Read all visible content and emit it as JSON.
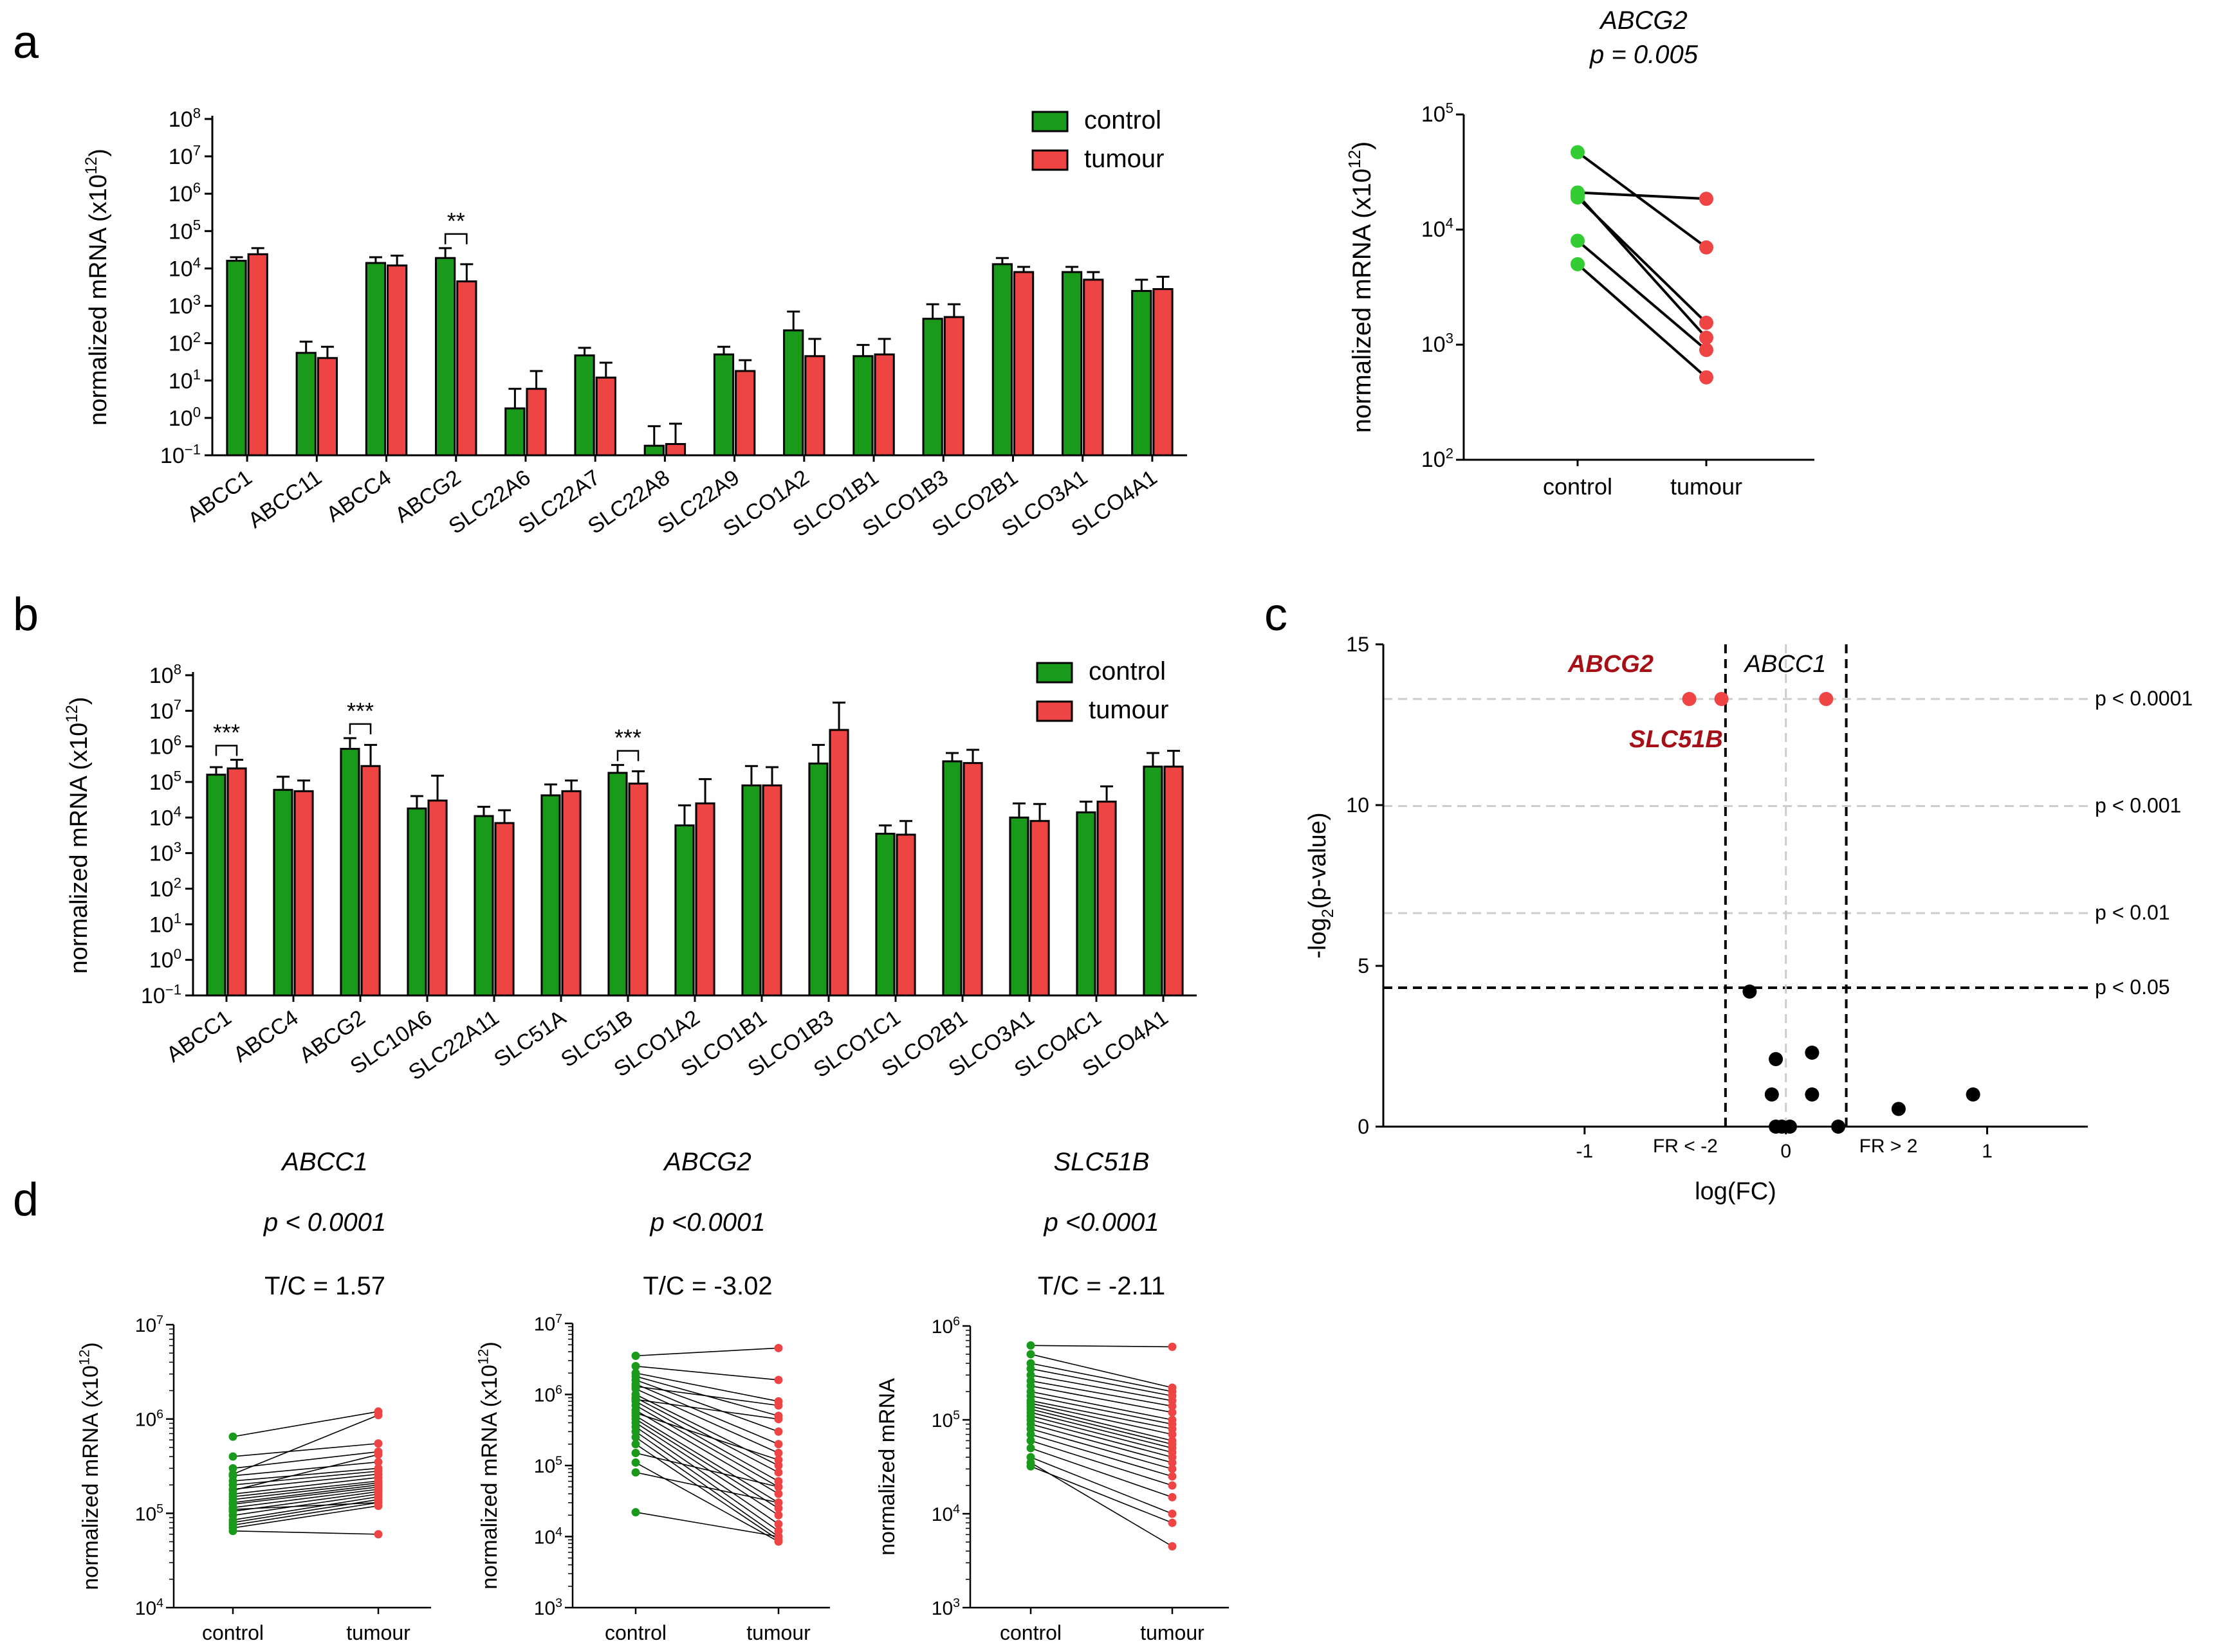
{
  "colors": {
    "control": "#1a9a1a",
    "tumour": "#ee4444",
    "sig_label": "#a50f15",
    "ref_grey": "#cccccc",
    "ref_black": "#000000"
  },
  "panel_labels": {
    "a": "a",
    "b": "b",
    "c": "c",
    "d": "d"
  },
  "chart_data": [
    {
      "id": "a-bars",
      "type": "bar",
      "scale": "log10",
      "ylabel": "normalized mRNA (x10",
      "ylabel_sup": "12",
      "ylim_exp": [
        -1,
        8
      ],
      "yticks_exp": [
        -1,
        0,
        1,
        2,
        3,
        4,
        5,
        6,
        7,
        8
      ],
      "legend": [
        "control",
        "tumour"
      ],
      "categories": [
        "ABCC1",
        "ABCC11",
        "ABCC4",
        "ABCG2",
        "SLC22A6",
        "SLC22A7",
        "SLC22A8",
        "SLC22A9",
        "SLCO1A2",
        "SLCO1B1",
        "SLCO1B3",
        "SLCO2B1",
        "SLCO3A1",
        "SLCO4A1"
      ],
      "series": [
        {
          "name": "control",
          "values": [
            16000,
            55,
            14000,
            19000,
            1.8,
            47,
            0.18,
            50,
            220,
            45,
            450,
            13000,
            8000,
            2500
          ],
          "err_upper": [
            20000,
            110,
            20000,
            35000,
            6,
            75,
            0.6,
            80,
            700,
            90,
            1100,
            19000,
            11000,
            5000
          ]
        },
        {
          "name": "tumour",
          "values": [
            24000,
            40,
            12000,
            4500,
            6,
            12,
            0.2,
            18,
            45,
            50,
            500,
            8000,
            5000,
            2800
          ],
          "err_upper": [
            35000,
            80,
            22000,
            13000,
            18,
            30,
            0.7,
            35,
            130,
            130,
            1100,
            11000,
            8000,
            6000
          ]
        }
      ],
      "annotations": [
        {
          "category": "ABCG2",
          "label": "**"
        }
      ]
    },
    {
      "id": "a-paired",
      "type": "scatter",
      "scale": "log10",
      "title": "ABCG2",
      "subtitle": "p = 0.005",
      "ylabel": "normalized mRNA (x10",
      "ylabel_sup": "12",
      "ylim_exp": [
        2,
        5
      ],
      "yticks_exp": [
        2,
        3,
        4,
        5
      ],
      "categories": [
        "control",
        "tumour"
      ],
      "pairs": [
        [
          47000,
          7000
        ],
        [
          21000,
          18500
        ],
        [
          19000,
          1550
        ],
        [
          20000,
          1150
        ],
        [
          8000,
          900
        ],
        [
          5000,
          520
        ]
      ]
    },
    {
      "id": "b-bars",
      "type": "bar",
      "scale": "log10",
      "ylabel": "normalized mRNA (x10",
      "ylabel_sup": "12",
      "ylim_exp": [
        -1,
        8
      ],
      "yticks_exp": [
        -1,
        0,
        1,
        2,
        3,
        4,
        5,
        6,
        7,
        8
      ],
      "legend": [
        "control",
        "tumour"
      ],
      "categories": [
        "ABCC1",
        "ABCC4",
        "ABCG2",
        "SLC10A6",
        "SLC22A11",
        "SLC51A",
        "SLC51B",
        "SLCO1A2",
        "SLCO1B1",
        "SLCO1B3",
        "SLCO1C1",
        "SLCO2B1",
        "SLCO3A1",
        "SLCO4C1",
        "SLCO4A1"
      ],
      "series": [
        {
          "name": "control",
          "values": [
            160000,
            60000,
            850000,
            18000,
            11000,
            42000,
            180000,
            6000,
            80000,
            330000,
            3500,
            380000,
            10000,
            14000,
            270000
          ],
          "err_upper": [
            260000,
            140000,
            1700000,
            40000,
            20000,
            85000,
            300000,
            22000,
            280000,
            1100000,
            6000,
            650000,
            25000,
            28000,
            650000
          ]
        },
        {
          "name": "tumour",
          "values": [
            240000,
            55000,
            280000,
            30000,
            7000,
            55000,
            90000,
            25000,
            80000,
            2900000,
            3300,
            340000,
            8000,
            28000,
            270000
          ],
          "err_upper": [
            420000,
            110000,
            1100000,
            150000,
            16000,
            110000,
            200000,
            120000,
            260000,
            17000000,
            8000,
            800000,
            24000,
            75000,
            750000
          ]
        }
      ],
      "annotations": [
        {
          "category": "ABCC1",
          "label": "***"
        },
        {
          "category": "ABCG2",
          "label": "***"
        },
        {
          "category": "SLC51B",
          "label": "***"
        }
      ]
    },
    {
      "id": "c-volcano",
      "type": "scatter",
      "xlabel": "log(FC)",
      "ylabel": "-log",
      "ylabel_sub": "2",
      "ylabel_tail": "(p-value)",
      "xlim": [
        -2,
        1.5
      ],
      "ylim": [
        0,
        15
      ],
      "xticks": [
        -1,
        0,
        1
      ],
      "yticks": [
        0,
        5,
        10,
        15
      ],
      "hlines": [
        {
          "y": 13.3,
          "label": "p < 0.0001"
        },
        {
          "y": 9.97,
          "label": "p < 0.001"
        },
        {
          "y": 6.64,
          "label": "p < 0.01"
        },
        {
          "y": 4.32,
          "label": "p < 0.05"
        }
      ],
      "vlines": [
        {
          "x": -0.3,
          "label": "FR < -2"
        },
        {
          "x": 0,
          "label": ""
        },
        {
          "x": 0.3,
          "label": "FR > 2"
        }
      ],
      "points_significant": [
        {
          "x": -0.48,
          "y": 13.3,
          "label": "ABCG2"
        },
        {
          "x": -0.32,
          "y": 13.3,
          "label": "SLC51B"
        },
        {
          "x": 0.2,
          "y": 13.3,
          "label": "ABCC1"
        }
      ],
      "points_other": [
        [
          -0.18,
          4.2
        ],
        [
          -0.05,
          2.1
        ],
        [
          0.13,
          2.3
        ],
        [
          -0.07,
          1.0
        ],
        [
          0.13,
          1.0
        ],
        [
          0.56,
          0.55
        ],
        [
          0.93,
          1.0
        ],
        [
          -0.05,
          0.0
        ],
        [
          -0.02,
          0.0
        ],
        [
          0.02,
          0.0
        ],
        [
          0.26,
          0.0
        ]
      ]
    },
    {
      "id": "d-abcc1",
      "type": "scatter",
      "scale": "log10",
      "title": "ABCC1",
      "pvalue": "p < 0.0001",
      "ratio": "T/C = 1.57",
      "ylabel": "normalized mRNA (x10",
      "ylabel_sup": "12",
      "ylim_exp": [
        4,
        7
      ],
      "yticks_exp": [
        4,
        5,
        6,
        7
      ],
      "categories": [
        "control",
        "tumour"
      ],
      "pairs": [
        [
          650000,
          1200000
        ],
        [
          400000,
          550000
        ],
        [
          300000,
          450000
        ],
        [
          250000,
          350000
        ],
        [
          220000,
          300000
        ],
        [
          200000,
          280000
        ],
        [
          180000,
          260000
        ],
        [
          160000,
          240000
        ],
        [
          150000,
          220000
        ],
        [
          140000,
          210000
        ],
        [
          130000,
          200000
        ],
        [
          125000,
          190000
        ],
        [
          115000,
          180000
        ],
        [
          105000,
          170000
        ],
        [
          95000,
          160000
        ],
        [
          85000,
          150000
        ],
        [
          80000,
          140000
        ],
        [
          75000,
          130000
        ],
        [
          70000,
          120000
        ],
        [
          65000,
          60000
        ],
        [
          260000,
          1100000
        ],
        [
          175000,
          420000
        ],
        [
          110000,
          130000
        ]
      ]
    },
    {
      "id": "d-abcg2",
      "type": "scatter",
      "scale": "log10",
      "title": "ABCG2",
      "pvalue": "p <0.0001",
      "ratio": "T/C = -3.02",
      "ylabel": "normalized mRNA (x10",
      "ylabel_sup": "12",
      "ylim_exp": [
        3,
        7
      ],
      "yticks_exp": [
        3,
        4,
        5,
        6,
        7
      ],
      "categories": [
        "control",
        "tumour"
      ],
      "pairs": [
        [
          3500000,
          4500000
        ],
        [
          2500000,
          1600000
        ],
        [
          2000000,
          800000
        ],
        [
          1800000,
          500000
        ],
        [
          1600000,
          300000
        ],
        [
          1400000,
          200000
        ],
        [
          1200000,
          150000
        ],
        [
          1000000,
          100000
        ],
        [
          900000,
          80000
        ],
        [
          800000,
          60000
        ],
        [
          700000,
          50000
        ],
        [
          600000,
          40000
        ],
        [
          500000,
          30000
        ],
        [
          450000,
          25000
        ],
        [
          400000,
          20000
        ],
        [
          350000,
          15000
        ],
        [
          300000,
          12000
        ],
        [
          250000,
          10000
        ],
        [
          200000,
          9000
        ],
        [
          150000,
          50000
        ],
        [
          110000,
          8500
        ],
        [
          80000,
          30000
        ],
        [
          22000,
          10000
        ],
        [
          1300000,
          700000
        ],
        [
          850000,
          450000
        ],
        [
          550000,
          120000
        ]
      ]
    },
    {
      "id": "d-slc51b",
      "type": "scatter",
      "scale": "log10",
      "title": "SLC51B",
      "pvalue": "p <0.0001",
      "ratio": "T/C = -2.11",
      "ylabel": "normalized mRNA",
      "ylabel_sup": "",
      "ylim_exp": [
        3,
        6
      ],
      "yticks_exp": [
        3,
        4,
        5,
        6
      ],
      "categories": [
        "control",
        "tumour"
      ],
      "pairs": [
        [
          620000,
          600000
        ],
        [
          500000,
          220000
        ],
        [
          400000,
          200000
        ],
        [
          350000,
          180000
        ],
        [
          300000,
          160000
        ],
        [
          260000,
          140000
        ],
        [
          230000,
          120000
        ],
        [
          200000,
          100000
        ],
        [
          180000,
          90000
        ],
        [
          160000,
          80000
        ],
        [
          150000,
          70000
        ],
        [
          140000,
          60000
        ],
        [
          130000,
          55000
        ],
        [
          120000,
          50000
        ],
        [
          110000,
          45000
        ],
        [
          100000,
          40000
        ],
        [
          90000,
          35000
        ],
        [
          80000,
          30000
        ],
        [
          70000,
          25000
        ],
        [
          60000,
          20000
        ],
        [
          50000,
          15000
        ],
        [
          40000,
          10000
        ],
        [
          35000,
          4500
        ],
        [
          32000,
          8000
        ]
      ]
    }
  ]
}
